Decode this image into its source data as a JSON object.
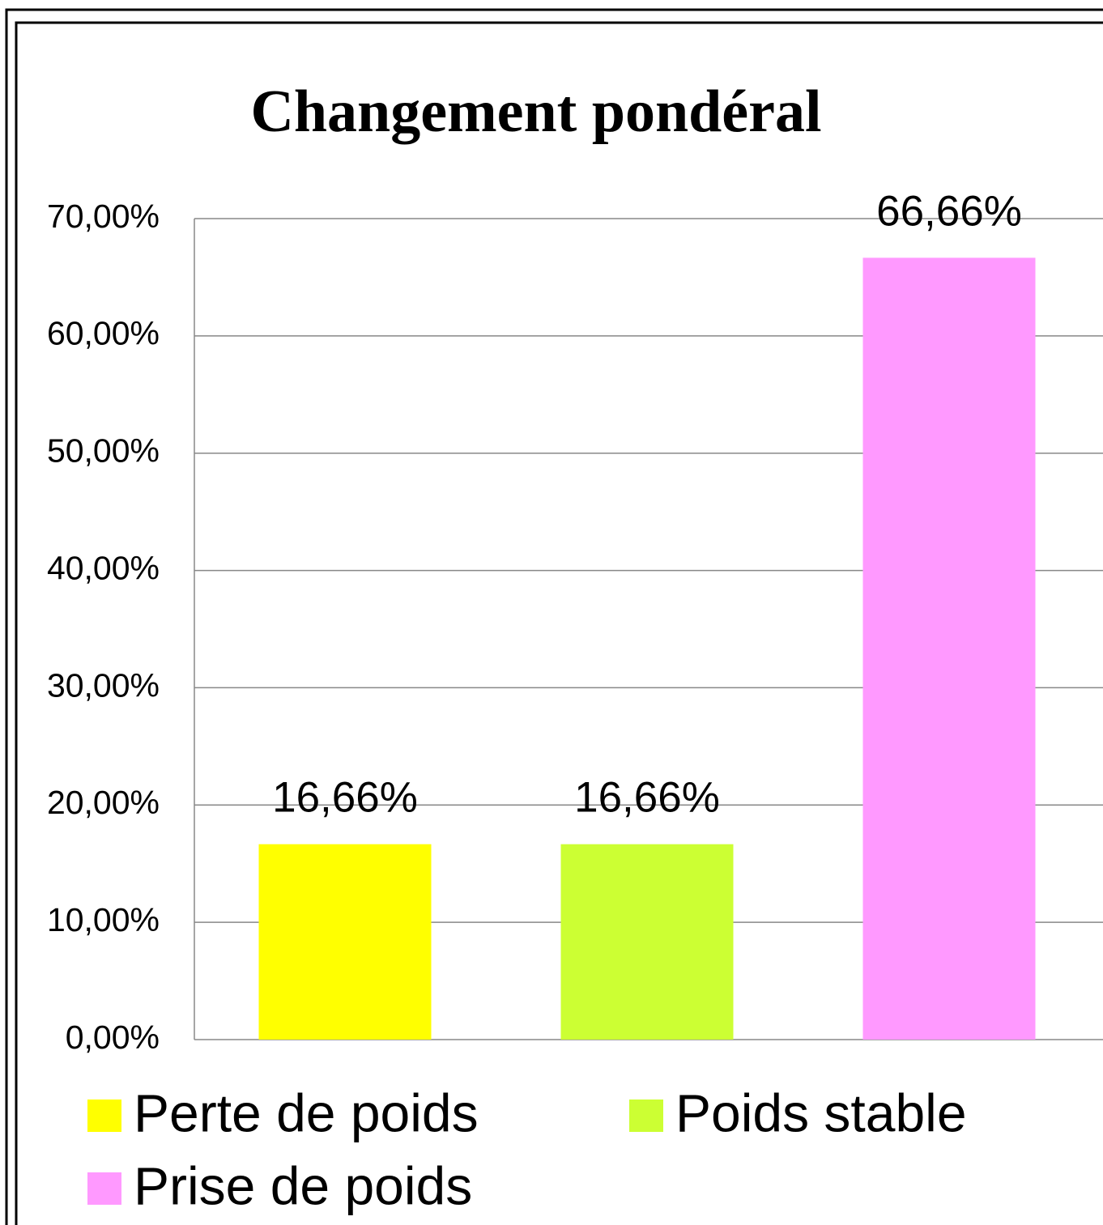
{
  "chart_data": {
    "type": "bar",
    "title": "Changement pondéral",
    "categories": [
      null
    ],
    "series": [
      {
        "name": "Perte de poids",
        "color": "#ffff00",
        "values": [
          16.66
        ],
        "value_labels": [
          "16,66%"
        ]
      },
      {
        "name": "Poids stable",
        "color": "#ccff33",
        "values": [
          16.66
        ],
        "value_labels": [
          "16,66%"
        ]
      },
      {
        "name": "Prise de poids",
        "color": "#ff99ff",
        "values": [
          66.66
        ],
        "value_labels": [
          "66,66%"
        ]
      }
    ],
    "ylim": [
      0,
      70
    ],
    "yticks": [
      {
        "value": 0,
        "label": "0,00%"
      },
      {
        "value": 10,
        "label": "10,00%"
      },
      {
        "value": 20,
        "label": "20,00%"
      },
      {
        "value": 30,
        "label": "30,00%"
      },
      {
        "value": 40,
        "label": "40,00%"
      },
      {
        "value": 50,
        "label": "50,00%"
      },
      {
        "value": 60,
        "label": "60,00%"
      },
      {
        "value": 70,
        "label": "70,00%"
      }
    ],
    "grid": true,
    "legend": "bottom"
  }
}
